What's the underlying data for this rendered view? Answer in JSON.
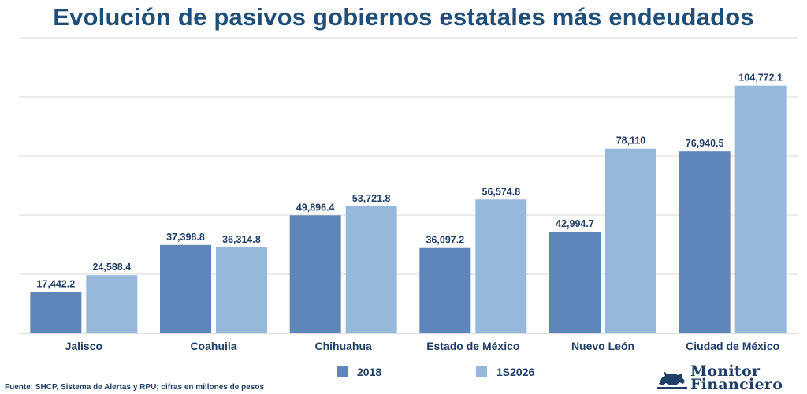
{
  "chart_data": {
    "type": "bar",
    "title": "Evolución de pasivos gobiernos estatales más endeudados",
    "categories": [
      "Jalisco",
      "Coahuila",
      "Chihuahua",
      "Estado de México",
      "Nuevo León",
      "Ciudad de México"
    ],
    "series": [
      {
        "name": "2018",
        "color": "#5e86b8",
        "values": [
          17442.2,
          37398.8,
          49896.4,
          36097.2,
          42994.7,
          76940.5
        ],
        "labels": [
          "17,442.2",
          "37,398.8",
          "49,896.4",
          "36,097.2",
          "42,994.7",
          "76,940.5"
        ]
      },
      {
        "name": "1S2026",
        "color": "#95b8db",
        "values": [
          24588.4,
          36314.8,
          53721.8,
          56574.8,
          78110,
          104772.1
        ],
        "labels": [
          "24,588.4",
          "36,314.8",
          "53,721.8",
          "56,574.8",
          "78,110",
          "104,772.1"
        ]
      }
    ],
    "ylim": [
      0,
      125000
    ],
    "grid": true,
    "legend_position": "bottom"
  },
  "footer": {
    "source": "Fuente: SHCP, Sistema de Alertas y RPU; cifras en millones de pesos"
  },
  "brand": {
    "line1": "Monitor",
    "line2": "Financiero",
    "icon": "bull-icon"
  }
}
